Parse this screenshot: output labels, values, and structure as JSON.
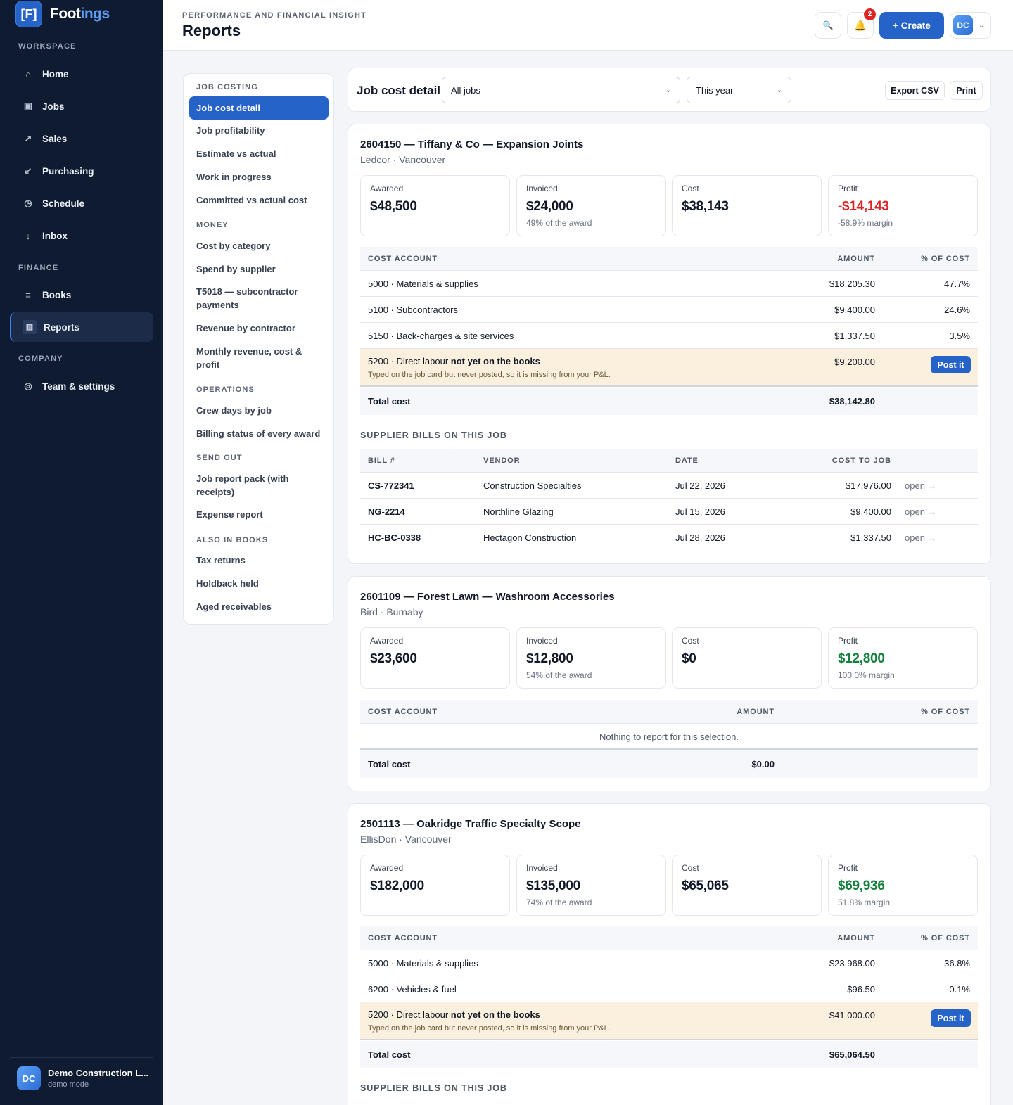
{
  "brand": {
    "logo": "[F]",
    "name_a": "Foot",
    "name_b": "ings"
  },
  "sidebar": {
    "sections": [
      "WORKSPACE",
      "FINANCE",
      "COMPANY"
    ],
    "items": [
      {
        "label": "Home",
        "icon": "⌂"
      },
      {
        "label": "Jobs",
        "icon": "▣"
      },
      {
        "label": "Sales",
        "icon": "↗"
      },
      {
        "label": "Purchasing",
        "icon": "↙"
      },
      {
        "label": "Schedule",
        "icon": "◷"
      },
      {
        "label": "Inbox",
        "icon": "↓"
      },
      {
        "label": "Books",
        "icon": "≡"
      },
      {
        "label": "Reports",
        "icon": "▥"
      },
      {
        "label": "Team & settings",
        "icon": "◎"
      }
    ],
    "footer": {
      "initials": "DC",
      "name": "Demo Construction L...",
      "sub": "demo mode"
    }
  },
  "header": {
    "eyebrow": "PERFORMANCE AND FINANCIAL INSIGHT",
    "title": "Reports",
    "search_icon": "🔍",
    "bell_icon": "🔔",
    "notifications": "2",
    "create_label": "+ Create",
    "user_initials": "DC",
    "caret": "⌄"
  },
  "menu": {
    "sections": {
      "job_costing": "JOB COSTING",
      "money": "MONEY",
      "operations": "OPERATIONS",
      "send_out": "SEND OUT",
      "also_books": "ALSO IN BOOKS"
    },
    "items": [
      "Job cost detail",
      "Job profitability",
      "Estimate vs actual",
      "Work in progress",
      "Committed vs actual cost",
      "Cost by category",
      "Spend by supplier",
      "T5018 — subcontractor payments",
      "Revenue by contractor",
      "Monthly revenue, cost & profit",
      "Crew days by job",
      "Billing status of every award",
      "Job report pack (with receipts)",
      "Expense report",
      "Tax returns",
      "Holdback held",
      "Aged receivables"
    ]
  },
  "filters": {
    "title": "Job cost detail",
    "job_select": "All jobs",
    "period_select": "This year",
    "export": "Export CSV",
    "print": "Print"
  },
  "labels": {
    "awarded": "Awarded",
    "invoiced": "Invoiced",
    "cost": "Cost",
    "profit": "Profit",
    "cost_account": "COST ACCOUNT",
    "amount": "AMOUNT",
    "pct_cost": "% OF COST",
    "total_cost": "Total cost",
    "supplier_bills": "SUPPLIER BILLS ON THIS JOB",
    "bill_no": "BILL #",
    "vendor": "VENDOR",
    "date": "DATE",
    "cost_to_job": "COST TO JOB",
    "open": "open →",
    "post_it": "Post it",
    "not_on_books_prefix": "5200 · Direct labour ",
    "not_on_books_bold": "not yet on the books",
    "not_on_books_hint": "Typed on the job card but never posted, so it is missing from your P&L.",
    "empty": "Nothing to report for this selection."
  },
  "jobs": [
    {
      "title": "2604150 — Tiffany & Co — Expansion Joints",
      "sub": "Ledcor · Vancouver",
      "awarded": "$48,500",
      "invoiced": "$24,000",
      "invoiced_sub": "49% of the award",
      "cost": "$38,143",
      "profit": "-$14,143",
      "profit_sub": "-58.9% margin",
      "rows": [
        {
          "account": "5000 · Materials & supplies",
          "amount": "$18,205.30",
          "pct": "47.7%"
        },
        {
          "account": "5100 · Subcontractors",
          "amount": "$9,400.00",
          "pct": "24.6%"
        },
        {
          "account": "5150 · Back-charges & site services",
          "amount": "$1,337.50",
          "pct": "3.5%"
        }
      ],
      "unposted_amount": "$9,200.00",
      "total": "$38,142.80",
      "bills": [
        {
          "id": "CS-772341",
          "vendor": "Construction Specialties",
          "date": "Jul 22, 2026",
          "cost": "$17,976.00"
        },
        {
          "id": "NG-2214",
          "vendor": "Northline Glazing",
          "date": "Jul 15, 2026",
          "cost": "$9,400.00"
        },
        {
          "id": "HC-BC-0338",
          "vendor": "Hectagon Construction",
          "date": "Jul 28, 2026",
          "cost": "$1,337.50"
        }
      ]
    },
    {
      "title": "2601109 — Forest Lawn — Washroom Accessories",
      "sub": "Bird · Burnaby",
      "awarded": "$23,600",
      "invoiced": "$12,800",
      "invoiced_sub": "54% of the award",
      "cost": "$0",
      "profit": "$12,800",
      "profit_sub": "100.0% margin",
      "total": "$0.00"
    },
    {
      "title": "2501113 — Oakridge Traffic Specialty Scope",
      "sub": "EllisDon · Vancouver",
      "awarded": "$182,000",
      "invoiced": "$135,000",
      "invoiced_sub": "74% of the award",
      "cost": "$65,065",
      "profit": "$69,936",
      "profit_sub": "51.8% margin",
      "rows": [
        {
          "account": "5000 · Materials & supplies",
          "amount": "$23,968.00",
          "pct": "36.8%"
        },
        {
          "account": "6200 · Vehicles & fuel",
          "amount": "$96.50",
          "pct": "0.1%"
        }
      ],
      "unposted_amount": "$41,000.00",
      "total": "$65,064.50"
    }
  ],
  "colors": {
    "accent": "#2563c9",
    "sidebar": "#0f1b30",
    "negative": "#dc2626",
    "positive": "#15803d",
    "warning_row": "#fbf0de"
  }
}
